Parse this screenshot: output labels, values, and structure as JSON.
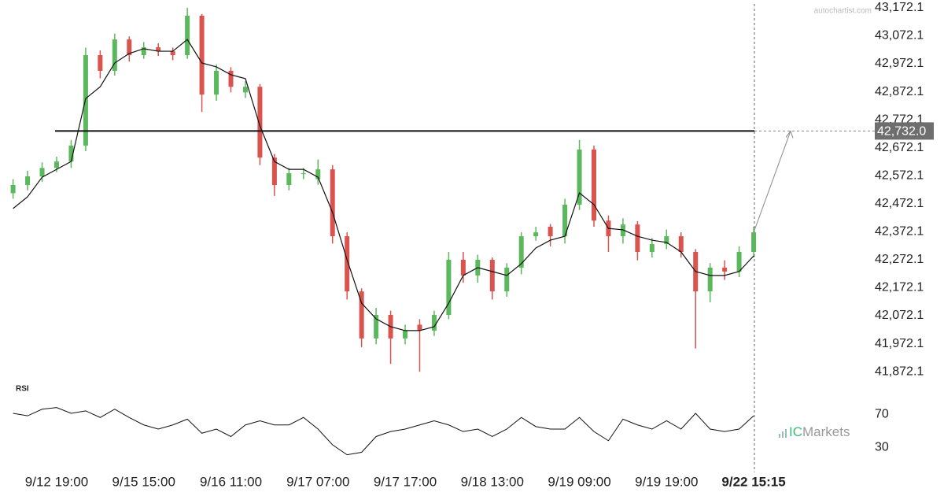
{
  "watermark": "autochartist.com",
  "logo": {
    "mark": "IC",
    "text": "Markets"
  },
  "chart_data": [
    {
      "type": "candlestick",
      "categories": [
        null,
        null,
        null,
        "9/12 19:00",
        null,
        null,
        null,
        null,
        null,
        "9/15 15:00",
        null,
        null,
        null,
        null,
        null,
        "9/16 11:00",
        null,
        null,
        null,
        null,
        null,
        "9/17 07:00",
        null,
        null,
        null,
        null,
        null,
        "9/17 17:00",
        null,
        null,
        null,
        null,
        null,
        "9/18 13:00",
        null,
        null,
        null,
        null,
        null,
        "9/19 09:00",
        null,
        null,
        null,
        null,
        null,
        "9/19 19:00",
        null,
        null,
        null,
        null,
        null,
        "9/22 15:15"
      ],
      "open": [
        42510,
        42539,
        42570,
        42600,
        42623,
        42680,
        43003,
        42947,
        43059,
        43003,
        43031,
        43017,
        43003,
        43144,
        42862,
        42947,
        42870,
        42890,
        42637,
        42539,
        42581,
        42560,
        42595,
        42356,
        42159,
        41991,
        42075,
        41991,
        42040,
        42019,
        42075,
        42272,
        42216,
        42272,
        42159,
        42244,
        42356,
        42390,
        42356,
        42469,
        42666,
        42412,
        42356,
        42398,
        42300,
        42328,
        42356,
        42300,
        42159,
        42244,
        42230,
        42300
      ],
      "high": [
        42560,
        42590,
        42620,
        42640,
        42700,
        43030,
        43020,
        43080,
        43070,
        43050,
        43045,
        43030,
        43172,
        43150,
        42970,
        42960,
        42910,
        42900,
        42650,
        42600,
        42600,
        42630,
        42610,
        42370,
        42170,
        42100,
        42090,
        42040,
        42060,
        42090,
        42300,
        42300,
        42290,
        42280,
        42260,
        42370,
        42390,
        42400,
        42490,
        42700,
        42680,
        42430,
        42420,
        42410,
        42350,
        42380,
        42370,
        42310,
        42260,
        42270,
        42320,
        42390
      ],
      "low": [
        42490,
        42520,
        42550,
        42585,
        42600,
        42660,
        42920,
        42930,
        42980,
        42990,
        43000,
        42985,
        42990,
        42800,
        42840,
        42870,
        42850,
        42610,
        42500,
        42520,
        42560,
        42540,
        42330,
        42130,
        41960,
        41970,
        41900,
        41970,
        41872,
        42000,
        42060,
        42190,
        42190,
        42130,
        42140,
        42220,
        42340,
        42320,
        42330,
        42450,
        42390,
        42300,
        42330,
        42270,
        42280,
        42310,
        42280,
        41955,
        42120,
        42200,
        42210,
        42280
      ],
      "close": [
        42539,
        42570,
        42600,
        42623,
        42680,
        43003,
        42947,
        43059,
        43003,
        43031,
        43017,
        43003,
        43144,
        42862,
        42947,
        42890,
        42890,
        42637,
        42539,
        42581,
        42581,
        42595,
        42356,
        42159,
        41991,
        42075,
        41991,
        42019,
        42019,
        42075,
        42272,
        42216,
        42272,
        42159,
        42244,
        42356,
        42370,
        42356,
        42469,
        42666,
        42412,
        42356,
        42398,
        42300,
        42328,
        42356,
        42300,
        42159,
        42244,
        42230,
        42300,
        42370
      ],
      "ma": [
        42455,
        42497,
        42567,
        42595,
        42623,
        42848,
        42890,
        42975,
        43009,
        43026,
        43017,
        43017,
        43059,
        42975,
        42961,
        42933,
        42919,
        42750,
        42623,
        42595,
        42595,
        42567,
        42441,
        42272,
        42117,
        42061,
        42033,
        42019,
        42019,
        42033,
        42117,
        42216,
        42244,
        42230,
        42216,
        42258,
        42314,
        42342,
        42356,
        42511,
        42469,
        42384,
        42379,
        42356,
        42342,
        42334,
        42300,
        42230,
        42216,
        42216,
        42230,
        42286
      ],
      "up_color": "#5cb85c",
      "down_color": "#d9534f",
      "ma_color": "#111111",
      "level": {
        "value": 42732.0,
        "label": "42,732.0"
      },
      "ylim": [
        41850,
        43200
      ],
      "yticks": [
        {
          "value": 41872.1,
          "label": "41,872.1"
        },
        {
          "value": 41972.1,
          "label": "41,972.1"
        },
        {
          "value": 42072.1,
          "label": "42,072.1"
        },
        {
          "value": 42172.1,
          "label": "42,172.1"
        },
        {
          "value": 42272.1,
          "label": "42,272.1"
        },
        {
          "value": 42372.1,
          "label": "42,372.1"
        },
        {
          "value": 42472.1,
          "label": "42,472.1"
        },
        {
          "value": 42572.1,
          "label": "42,572.1"
        },
        {
          "value": 42672.1,
          "label": "42,672.1"
        },
        {
          "value": 42772.1,
          "label": "42,772.1"
        },
        {
          "value": 42872.1,
          "label": "42,872.1"
        },
        {
          "value": 42972.1,
          "label": "42,972.1"
        },
        {
          "value": 43072.1,
          "label": "43,072.1"
        },
        {
          "value": 43172.1,
          "label": "43,172.1"
        }
      ]
    },
    {
      "type": "line",
      "title": "RSI",
      "values": [
        71,
        68,
        76,
        78,
        71,
        74,
        66,
        76,
        66,
        57,
        52,
        57,
        64,
        47,
        52,
        43,
        57,
        62,
        57,
        57,
        66,
        52,
        33,
        21,
        24,
        43,
        49,
        52,
        57,
        62,
        57,
        49,
        52,
        43,
        52,
        66,
        55,
        52,
        52,
        66,
        49,
        38,
        64,
        57,
        52,
        62,
        52,
        71,
        52,
        49,
        52,
        68
      ],
      "color": "#111111",
      "ylim": [
        14,
        90
      ],
      "yticks": [
        70,
        30
      ]
    }
  ]
}
